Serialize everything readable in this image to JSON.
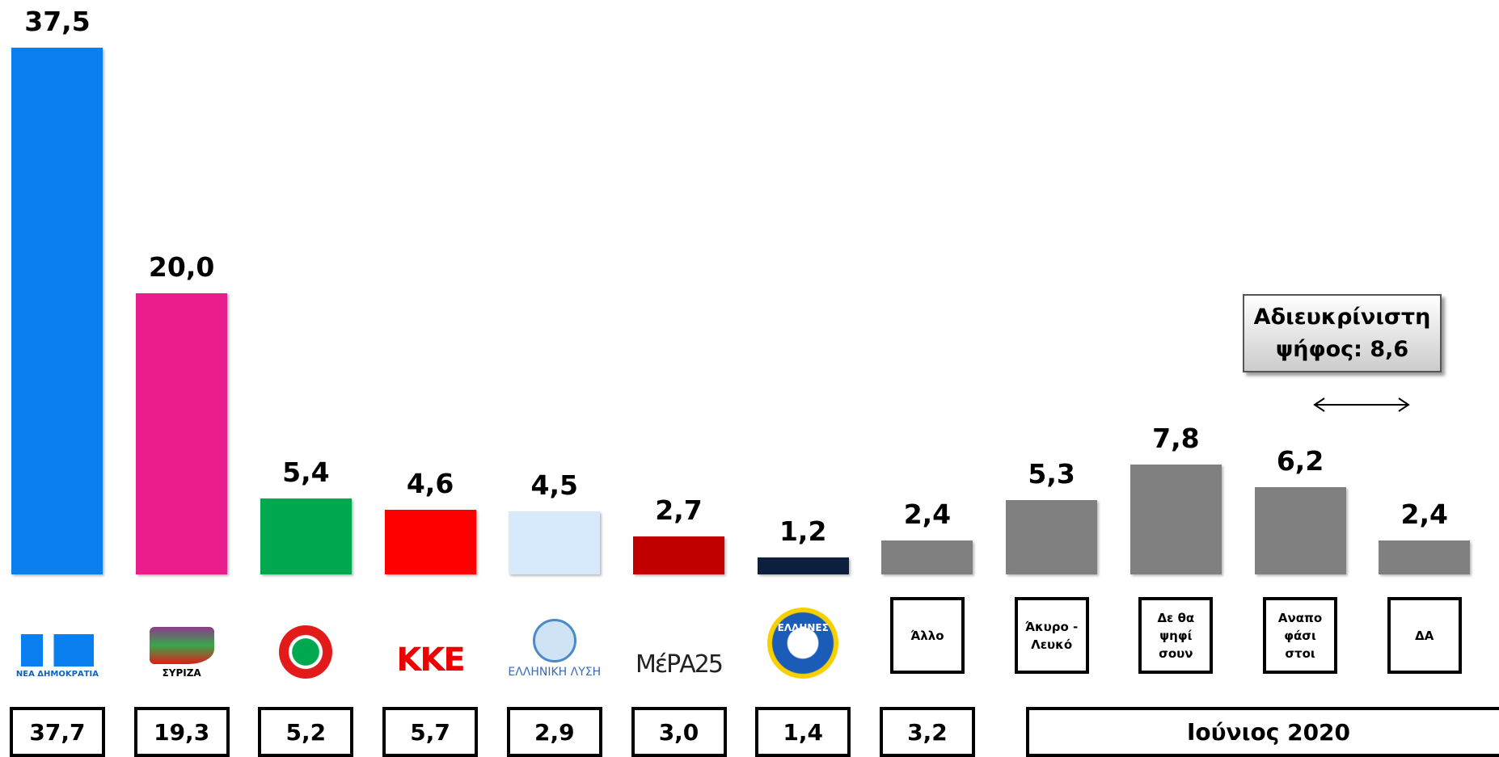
{
  "chart_data": {
    "type": "bar",
    "categories": [
      "ΝΕΑ ΔΗΜΟΚΡΑΤΙΑ",
      "ΣΥΡΙΖΑ",
      null,
      "ΚΚΕ",
      "ΕΛΛΗΝΙΚΗ ΛΥΣΗ",
      "ΜέΡΑ25",
      "ΕΛΛΗΝΕΣ",
      "Άλλο",
      "Άκυρο - Λευκό",
      "Δε θα ψηφί σουν",
      "Αναπο φάσι στοι",
      "ΔΑ"
    ],
    "values": [
      37.5,
      20.0,
      5.4,
      4.6,
      4.5,
      2.7,
      1.2,
      2.4,
      5.3,
      7.8,
      6.2,
      2.4
    ],
    "value_labels": [
      "37,5",
      "20,0",
      "5,4",
      "4,6",
      "4,5",
      "2,7",
      "1,2",
      "2,4",
      "5,3",
      "7,8",
      "6,2",
      "2,4"
    ],
    "colors": [
      "#0a7ff0",
      "#e91e8c",
      "#00a84f",
      "#ff0000",
      "#d6eafc",
      "#c00000",
      "#0c1f3f",
      "#808080",
      "#808080",
      "#808080",
      "#808080",
      "#808080"
    ],
    "previous": {
      "label": "Ιούνιος 2020",
      "values": [
        37.7,
        19.3,
        5.2,
        5.7,
        2.9,
        3.0,
        1.4,
        3.2
      ],
      "value_labels": [
        "37,7",
        "19,3",
        "5,2",
        "5,7",
        "2,9",
        "3,0",
        "1,4",
        "3,2"
      ]
    },
    "annotation": "Αδιευκρίνιστη ψήφος: 8,6"
  }
}
